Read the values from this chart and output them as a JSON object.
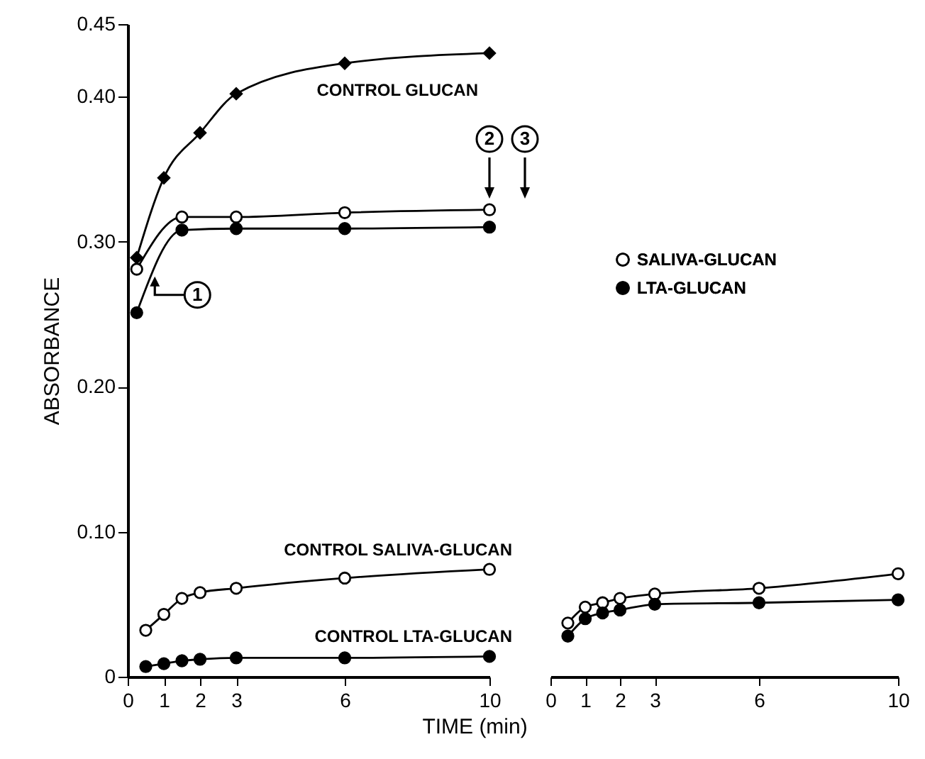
{
  "chart_data": [
    {
      "type": "line",
      "xlabel": "TIME (min)",
      "ylabel": "ABSORBANCE",
      "xlim": [
        0,
        10
      ],
      "ylim": [
        0,
        0.45
      ],
      "xticks": [
        0,
        1,
        2,
        3,
        6,
        10
      ],
      "yticks": [
        0,
        {
          "value": 0.1,
          "label": "0.10"
        },
        {
          "value": 0.2,
          "label": "0.20"
        },
        {
          "value": 0.3,
          "label": "0.30"
        },
        {
          "value": 0.4,
          "label": "0.40"
        },
        0.45
      ],
      "series": [
        {
          "name": "CONTROL GLUCAN",
          "color": "#000000",
          "marker": "diamond",
          "x": [
            0.25,
            1,
            2,
            3,
            6,
            10
          ],
          "values": [
            0.289,
            0.344,
            0.375,
            0.402,
            0.423,
            0.43
          ]
        },
        {
          "color": "#ffffff",
          "marker": "circle",
          "x": [
            0.25,
            1.5,
            3,
            6,
            10
          ],
          "values": [
            0.281,
            0.317,
            0.317,
            0.32,
            0.322
          ]
        },
        {
          "color": "#000000",
          "marker": "circle",
          "x": [
            0.25,
            1.5,
            3,
            6,
            10
          ],
          "values": [
            0.251,
            0.308,
            0.309,
            0.309,
            0.31
          ]
        },
        {
          "name": "CONTROL SALIVA-GLUCAN",
          "color": "#ffffff",
          "marker": "circle",
          "x": [
            0.5,
            1,
            1.5,
            2,
            3,
            6,
            10
          ],
          "values": [
            0.032,
            0.043,
            0.054,
            0.058,
            0.061,
            0.068,
            0.074
          ]
        },
        {
          "name": "CONTROL LTA-GLUCAN",
          "color": "#000000",
          "marker": "circle",
          "x": [
            0.5,
            1,
            1.5,
            2,
            3,
            6,
            10
          ],
          "values": [
            0.007,
            0.009,
            0.011,
            0.012,
            0.013,
            0.013,
            0.014
          ]
        }
      ],
      "annotations": [
        {
          "text": "1",
          "x": 0.75,
          "y": 0.276
        },
        "2",
        "3"
      ]
    },
    {
      "type": "line",
      "xlim": [
        0,
        10
      ],
      "ylim": [
        0,
        0.45
      ],
      "xticks": [
        0,
        1,
        2,
        3,
        6,
        10
      ],
      "tick_labels": "x",
      "legend": "top",
      "series": [
        {
          "name": "SALIVA-GLUCAN",
          "color": "#ffffff",
          "marker": "circle",
          "x": [
            0.5,
            1,
            1.5,
            2,
            3,
            6,
            10
          ],
          "values": [
            0.037,
            0.048,
            0.051,
            0.054,
            0.057,
            0.061,
            0.071
          ]
        },
        {
          "name": "LTA-GLUCAN",
          "color": "#000000",
          "marker": "circle",
          "x": [
            0.5,
            1,
            1.5,
            2,
            3,
            6,
            10
          ],
          "values": [
            0.028,
            0.04,
            0.044,
            0.046,
            0.05,
            0.051,
            0.053
          ]
        }
      ]
    }
  ]
}
